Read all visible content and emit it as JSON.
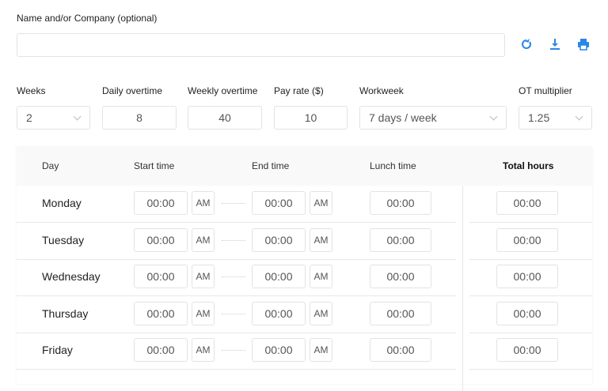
{
  "name_field": {
    "label": "Name and/or Company (optional)",
    "value": "",
    "placeholder": ""
  },
  "actions": [
    {
      "icon": "refresh-icon"
    },
    {
      "icon": "download-icon"
    },
    {
      "icon": "print-icon"
    }
  ],
  "accent_color": "#2a86e8",
  "settings": {
    "weeks": {
      "label": "Weeks",
      "value": "2"
    },
    "daily_overtime": {
      "label": "Daily overtime",
      "value": "8"
    },
    "weekly_overtime": {
      "label": "Weekly overtime",
      "value": "40"
    },
    "pay_rate": {
      "label": "Pay rate ($)",
      "value": "10"
    },
    "workweek": {
      "label": "Workweek",
      "value": "7 days / week"
    },
    "ot_multiplier": {
      "label": "OT multiplier",
      "value": "1.25"
    }
  },
  "table": {
    "headers": {
      "day": "Day",
      "start": "Start time",
      "end": "End time",
      "lunch": "Lunch time",
      "total": "Total hours"
    },
    "rows": [
      {
        "day": "Monday",
        "start": "00:00",
        "start_ampm": "AM",
        "end": "00:00",
        "end_ampm": "AM",
        "lunch": "00:00",
        "total": "00:00"
      },
      {
        "day": "Tuesday",
        "start": "00:00",
        "start_ampm": "AM",
        "end": "00:00",
        "end_ampm": "AM",
        "lunch": "00:00",
        "total": "00:00"
      },
      {
        "day": "Wednesday",
        "start": "00:00",
        "start_ampm": "AM",
        "end": "00:00",
        "end_ampm": "AM",
        "lunch": "00:00",
        "total": "00:00"
      },
      {
        "day": "Thursday",
        "start": "00:00",
        "start_ampm": "AM",
        "end": "00:00",
        "end_ampm": "AM",
        "lunch": "00:00",
        "total": "00:00"
      },
      {
        "day": "Friday",
        "start": "00:00",
        "start_ampm": "AM",
        "end": "00:00",
        "end_ampm": "AM",
        "lunch": "00:00",
        "total": "00:00"
      }
    ]
  }
}
